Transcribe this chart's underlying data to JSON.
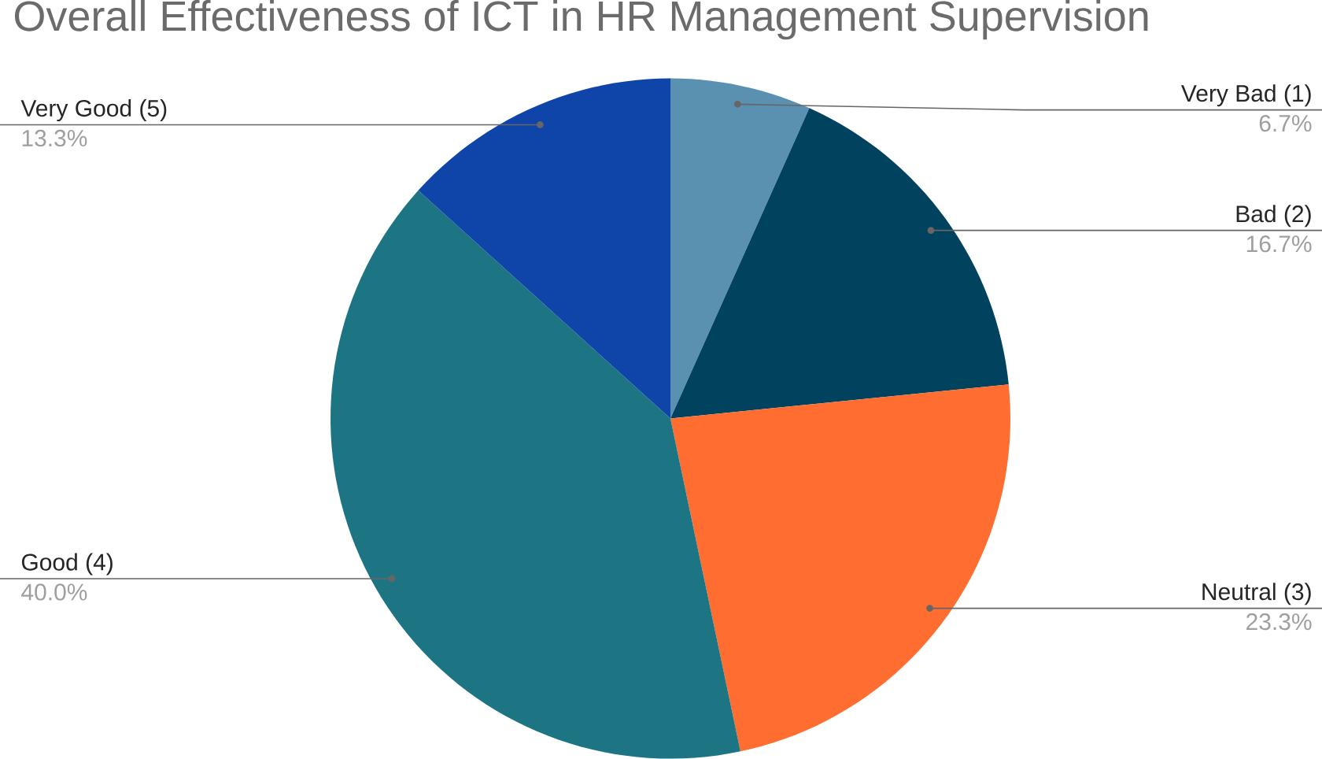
{
  "chart_data": {
    "type": "pie",
    "title": "Overall Effectiveness of ICT in HR Management Supervision",
    "categories": [
      "Very Bad (1)",
      "Bad (2)",
      "Neutral (3)",
      "Good (4)",
      "Very Good (5)"
    ],
    "values": [
      6.7,
      16.7,
      23.3,
      40.0,
      13.3
    ],
    "value_labels": [
      "6.7%",
      "16.7%",
      "23.3%",
      "40.0%",
      "13.3%"
    ],
    "colors": [
      "#5a91b0",
      "#01425f",
      "#ff6d31",
      "#1d7584",
      "#0f44a8"
    ]
  }
}
